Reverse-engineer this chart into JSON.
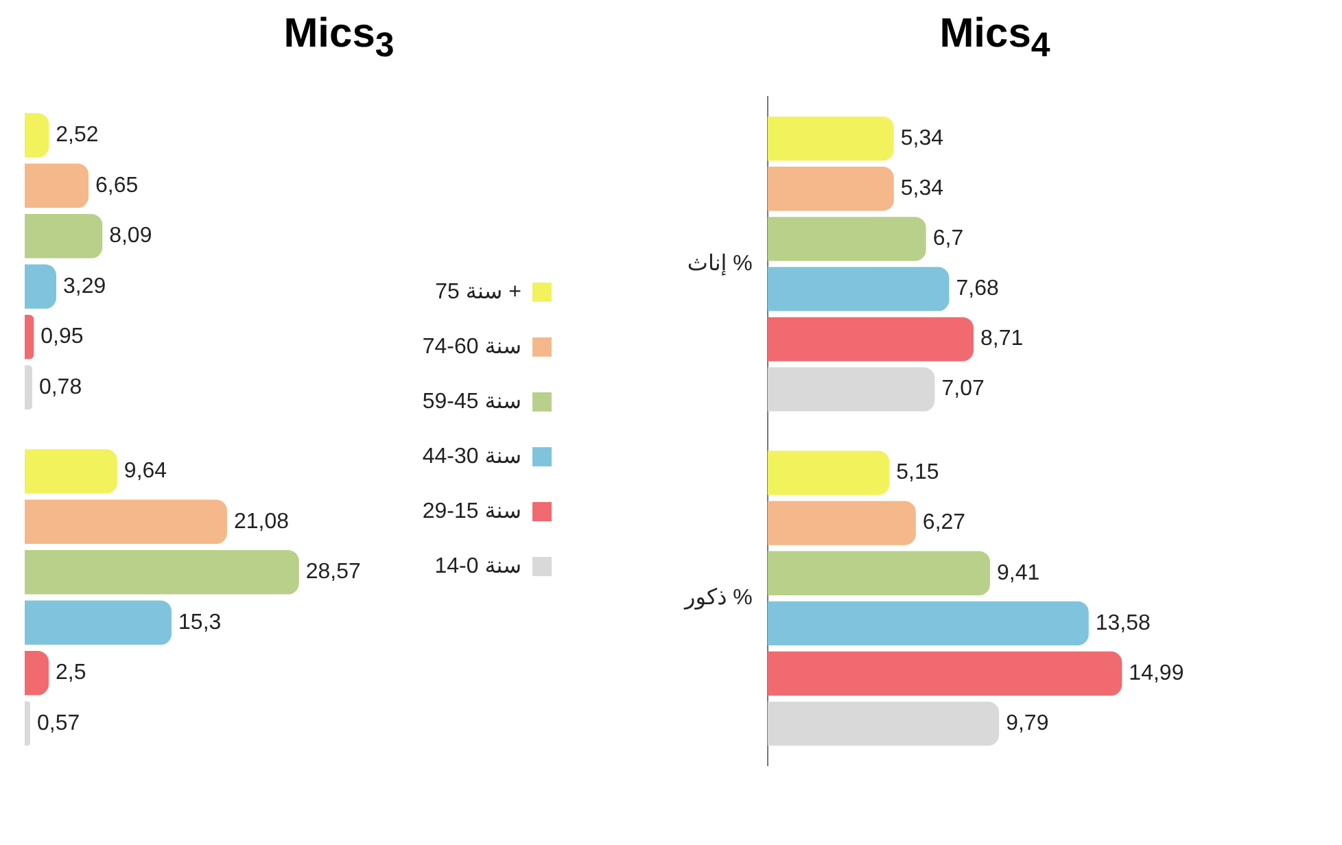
{
  "chart_data": [
    {
      "type": "bar",
      "title": "Mics$_{3}$",
      "orientation": "horizontal",
      "categories": [
        null,
        null
      ],
      "legend": "right",
      "tick_labels": false,
      "series": [
        {
          "name": "75 سنة +",
          "color": "#f2f25c",
          "values": [
            2.52,
            9.64
          ],
          "value_labels": [
            "2,52",
            "9,64"
          ]
        },
        {
          "name": "74-60 سنة",
          "color": "#f5b88a",
          "values": [
            6.65,
            21.08
          ],
          "value_labels": [
            "6,65",
            "21,08"
          ]
        },
        {
          "name": "59-45 سنة",
          "color": "#b8d08a",
          "values": [
            8.09,
            28.57
          ],
          "value_labels": [
            "8,09",
            "28,57"
          ]
        },
        {
          "name": "44-30 سنة",
          "color": "#7fc4dc",
          "values": [
            3.29,
            15.3
          ],
          "value_labels": [
            "3,29",
            "15,3"
          ]
        },
        {
          "name": "29-15 سنة",
          "color": "#f06a70",
          "values": [
            0.95,
            2.5
          ],
          "value_labels": [
            "0,95",
            "2,5"
          ]
        },
        {
          "name": "14-0 سنة",
          "color": "#d9d9d9",
          "values": [
            0.78,
            0.57
          ],
          "value_labels": [
            "0,78",
            "0,57"
          ]
        }
      ]
    },
    {
      "type": "bar",
      "title": "Mics$_{4}$",
      "orientation": "horizontal",
      "categories": [
        "إناث %",
        "ذكور %"
      ],
      "legend": false,
      "tick_labels": "y",
      "series": [
        {
          "color": "#f2f25c",
          "values": [
            5.34,
            5.15
          ],
          "value_labels": [
            "5,34",
            "5,15"
          ]
        },
        {
          "color": "#f5b88a",
          "values": [
            5.34,
            6.27
          ],
          "value_labels": [
            "5,34",
            "6,27"
          ]
        },
        {
          "color": "#b8d08a",
          "values": [
            6.7,
            9.41
          ],
          "value_labels": [
            "6,7",
            "9,41"
          ]
        },
        {
          "color": "#7fc4dc",
          "values": [
            7.68,
            13.58
          ],
          "value_labels": [
            "7,68",
            "13,58"
          ]
        },
        {
          "color": "#f06a70",
          "values": [
            8.71,
            14.99
          ],
          "value_labels": [
            "8,71",
            "14,99"
          ]
        },
        {
          "color": "#d9d9d9",
          "values": [
            7.07,
            9.79
          ],
          "value_labels": [
            "7,07",
            "9,79"
          ]
        }
      ]
    }
  ]
}
